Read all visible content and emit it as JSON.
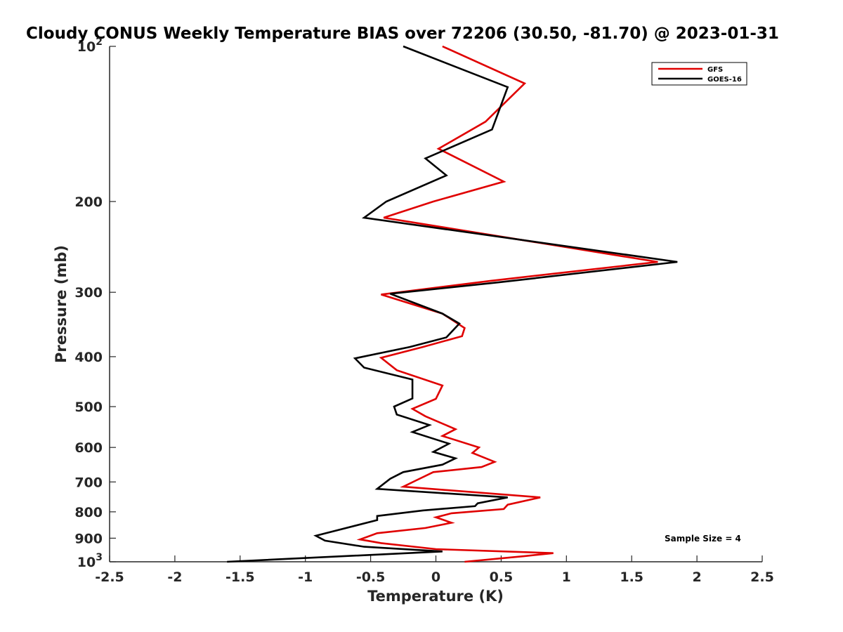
{
  "chart_data": {
    "type": "line",
    "title": "Cloudy CONUS Weekly Temperature BIAS over 72206 (30.50, -81.70) @ 2023-01-31",
    "xlabel": "Temperature (K)",
    "ylabel": "Pressure (mb)",
    "xlim": [
      -2.5,
      2.5
    ],
    "ylim": [
      1000,
      100
    ],
    "yscale": "log",
    "y_reversed": true,
    "grid": false,
    "legend_position": "top-right",
    "x_ticks": [
      -2.5,
      -2,
      -1.5,
      -1,
      -0.5,
      0,
      0.5,
      1,
      1.5,
      2,
      2.5
    ],
    "x_tick_labels": [
      "-2.5",
      "-2",
      "-1.5",
      "-1",
      "-0.5",
      "0",
      "0.5",
      "1",
      "1.5",
      "2",
      "2.5"
    ],
    "y_ticks": [
      100,
      200,
      300,
      400,
      500,
      600,
      700,
      800,
      900,
      1000
    ],
    "y_tick_labels": [
      "",
      "200",
      "300",
      "400",
      "500",
      "600",
      "700",
      "800",
      "900",
      ""
    ],
    "y_tick_labels_exp": [
      {
        "value": 100,
        "base": "10",
        "exp": "2"
      },
      {
        "value": 1000,
        "base": "10",
        "exp": "3"
      }
    ],
    "annotation": "Sample Size = 4",
    "series": [
      {
        "name": "GFS",
        "color": "#e00000",
        "points": [
          [
            0.05,
            100
          ],
          [
            0.68,
            118
          ],
          [
            0.38,
            140
          ],
          [
            0.02,
            158
          ],
          [
            0.52,
            183
          ],
          [
            -0.02,
            200
          ],
          [
            -0.4,
            215
          ],
          [
            1.7,
            262
          ],
          [
            0.42,
            285
          ],
          [
            -0.42,
            303
          ],
          [
            0.05,
            330
          ],
          [
            0.22,
            352
          ],
          [
            0.2,
            365
          ],
          [
            -0.1,
            383
          ],
          [
            -0.42,
            402
          ],
          [
            -0.3,
            425
          ],
          [
            0.05,
            455
          ],
          [
            0.0,
            483
          ],
          [
            -0.18,
            505
          ],
          [
            -0.08,
            522
          ],
          [
            0.15,
            553
          ],
          [
            0.05,
            570
          ],
          [
            0.33,
            600
          ],
          [
            0.28,
            615
          ],
          [
            0.45,
            640
          ],
          [
            0.35,
            655
          ],
          [
            -0.02,
            670
          ],
          [
            -0.15,
            695
          ],
          [
            -0.25,
            715
          ],
          [
            0.8,
            750
          ],
          [
            0.55,
            775
          ],
          [
            0.52,
            790
          ],
          [
            0.12,
            805
          ],
          [
            0.0,
            820
          ],
          [
            0.12,
            840
          ],
          [
            -0.08,
            860
          ],
          [
            -0.45,
            880
          ],
          [
            -0.58,
            905
          ],
          [
            -0.42,
            920
          ],
          [
            0.0,
            945
          ],
          [
            0.9,
            962
          ],
          [
            0.68,
            975
          ],
          [
            0.22,
            1000
          ]
        ]
      },
      {
        "name": "GOES-16",
        "color": "#000000",
        "points": [
          [
            -0.25,
            100
          ],
          [
            0.55,
            120
          ],
          [
            0.43,
            145
          ],
          [
            -0.08,
            165
          ],
          [
            0.08,
            178
          ],
          [
            -0.38,
            200
          ],
          [
            -0.55,
            215
          ],
          [
            1.85,
            262
          ],
          [
            0.48,
            287
          ],
          [
            -0.35,
            302
          ],
          [
            0.05,
            330
          ],
          [
            0.18,
            345
          ],
          [
            0.08,
            367
          ],
          [
            -0.2,
            383
          ],
          [
            -0.62,
            403
          ],
          [
            -0.55,
            420
          ],
          [
            -0.18,
            443
          ],
          [
            -0.18,
            482
          ],
          [
            -0.32,
            500
          ],
          [
            -0.3,
            518
          ],
          [
            -0.05,
            543
          ],
          [
            -0.18,
            560
          ],
          [
            0.1,
            590
          ],
          [
            -0.02,
            612
          ],
          [
            0.15,
            630
          ],
          [
            0.05,
            648
          ],
          [
            -0.25,
            670
          ],
          [
            -0.35,
            690
          ],
          [
            -0.45,
            722
          ],
          [
            0.55,
            750
          ],
          [
            0.32,
            770
          ],
          [
            0.3,
            780
          ],
          [
            -0.1,
            795
          ],
          [
            -0.45,
            815
          ],
          [
            -0.45,
            830
          ],
          [
            -0.92,
            890
          ],
          [
            -0.85,
            910
          ],
          [
            -0.55,
            935
          ],
          [
            0.05,
            955
          ],
          [
            -1.6,
            1000
          ]
        ]
      }
    ]
  }
}
